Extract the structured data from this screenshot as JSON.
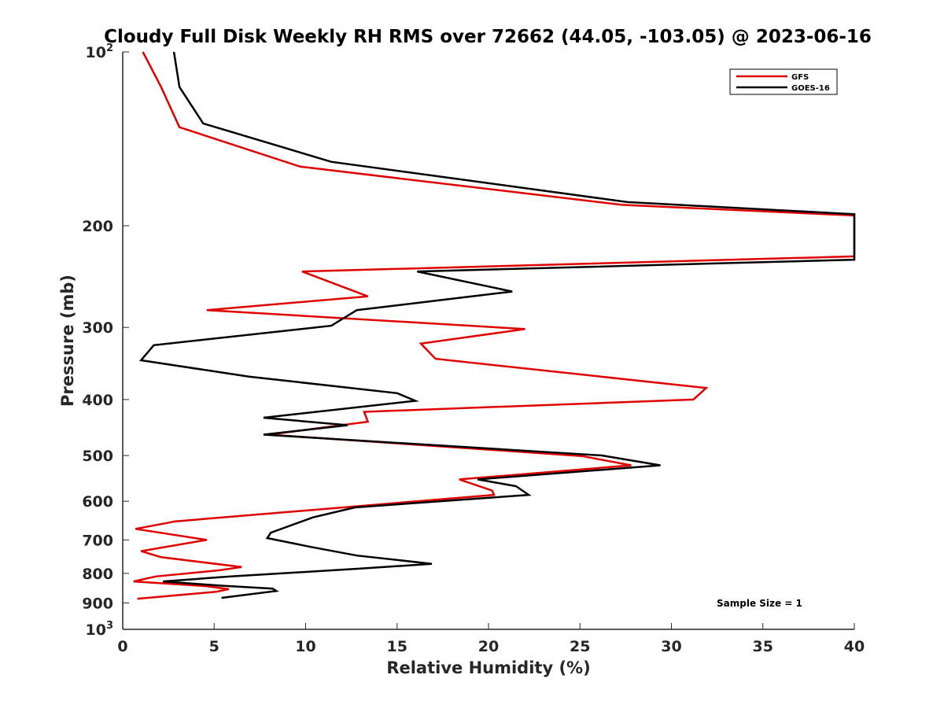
{
  "chart_data": {
    "type": "line",
    "title": "Cloudy Full Disk Weekly RH RMS over 72662 (44.05, -103.05) @ 2023-06-16",
    "xlabel": "Relative Humidity (%)",
    "ylabel": "Pressure (mb)",
    "xlim": [
      0,
      40
    ],
    "ylim": [
      100,
      1000
    ],
    "y_scale": "log",
    "y_reversed": true,
    "grid": false,
    "legend_position": "top-right",
    "x_ticks": [
      "0",
      "5",
      "10",
      "15",
      "20",
      "25",
      "30",
      "35",
      "40"
    ],
    "y_ticks": [
      {
        "value": 100,
        "base": "10",
        "exp": "2"
      },
      {
        "value": 200,
        "label": "200"
      },
      {
        "value": 300,
        "label": "300"
      },
      {
        "value": 400,
        "label": "400"
      },
      {
        "value": 500,
        "label": "500"
      },
      {
        "value": 600,
        "label": "600"
      },
      {
        "value": 700,
        "label": "700"
      },
      {
        "value": 800,
        "label": "800"
      },
      {
        "value": 900,
        "label": "900"
      },
      {
        "value": 1000,
        "base": "10",
        "exp": "3"
      }
    ],
    "annotation": "Sample Size = 1",
    "series": [
      {
        "name": "GFS",
        "color": "#e00000",
        "points": [
          [
            1.1,
            100
          ],
          [
            2.1,
            115
          ],
          [
            3.1,
            135
          ],
          [
            9.7,
            158
          ],
          [
            27.3,
            184
          ],
          [
            40.0,
            192
          ],
          [
            40.0,
            226
          ],
          [
            9.8,
            240
          ],
          [
            13.4,
            265
          ],
          [
            4.6,
            280
          ],
          [
            22.0,
            302
          ],
          [
            16.3,
            320
          ],
          [
            17.1,
            340
          ],
          [
            31.9,
            382
          ],
          [
            31.2,
            400
          ],
          [
            13.2,
            420
          ],
          [
            13.4,
            437
          ],
          [
            8.0,
            460
          ],
          [
            25.1,
            501
          ],
          [
            27.8,
            520
          ],
          [
            18.4,
            550
          ],
          [
            20.2,
            575
          ],
          [
            20.3,
            585
          ],
          [
            2.9,
            650
          ],
          [
            0.7,
            670
          ],
          [
            4.6,
            700
          ],
          [
            1.0,
            732
          ],
          [
            2.1,
            750
          ],
          [
            6.5,
            780
          ],
          [
            5.3,
            790
          ],
          [
            1.8,
            810
          ],
          [
            0.6,
            826
          ],
          [
            4.6,
            842
          ],
          [
            5.8,
            852
          ],
          [
            5.1,
            861
          ],
          [
            0.8,
            885
          ]
        ]
      },
      {
        "name": "GOES-16",
        "color": "#000000",
        "points": [
          [
            2.8,
            100
          ],
          [
            3.1,
            115
          ],
          [
            4.4,
            133
          ],
          [
            11.4,
            155
          ],
          [
            27.6,
            182
          ],
          [
            40.0,
            191
          ],
          [
            40.0,
            229
          ],
          [
            16.1,
            240
          ],
          [
            21.3,
            260
          ],
          [
            12.8,
            280
          ],
          [
            11.4,
            298
          ],
          [
            1.7,
            322
          ],
          [
            1.0,
            342
          ],
          [
            6.9,
            365
          ],
          [
            15.0,
            390
          ],
          [
            16.0,
            402
          ],
          [
            7.7,
            430
          ],
          [
            12.3,
            443
          ],
          [
            7.7,
            460
          ],
          [
            26.2,
            500
          ],
          [
            29.4,
            520
          ],
          [
            19.4,
            550
          ],
          [
            21.5,
            565
          ],
          [
            22.2,
            585
          ],
          [
            12.7,
            615
          ],
          [
            10.4,
            640
          ],
          [
            8.1,
            680
          ],
          [
            7.9,
            695
          ],
          [
            10.3,
            720
          ],
          [
            12.8,
            745
          ],
          [
            16.9,
            770
          ],
          [
            13.0,
            785
          ],
          [
            5.9,
            810
          ],
          [
            2.2,
            826
          ],
          [
            5.3,
            840
          ],
          [
            8.2,
            850
          ],
          [
            8.4,
            858
          ],
          [
            5.4,
            882
          ]
        ]
      }
    ]
  }
}
